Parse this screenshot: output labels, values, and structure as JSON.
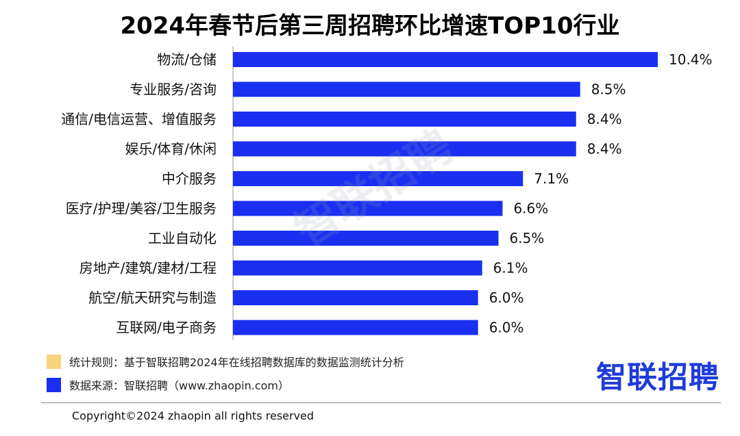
{
  "colors": {
    "bar": "#1a2ff0",
    "rule_swatch": "#f7d57e",
    "source_swatch": "#1a2ff0",
    "logo": "#1f3bd8"
  },
  "watermark": "智联招聘",
  "notes": {
    "rule": "统计规则：基于智联招聘2024年在线招聘数据库的数据监测统计分析",
    "source": "数据来源：智联招聘（www.zhaopin.com）"
  },
  "logo": "智联招聘",
  "copyright": "Copyright©2024 zhaopin all rights reserved",
  "chart_data": {
    "type": "bar",
    "orientation": "horizontal",
    "title": "2024年春节后第三周招聘环比增速TOP10行业",
    "categories": [
      "物流/仓储",
      "专业服务/咨询",
      "通信/电信运营、增值服务",
      "娱乐/体育/休闲",
      "中介服务",
      "医疗/护理/美容/卫生服务",
      "工业自动化",
      "房地产/建筑/建材/工程",
      "航空/航天研究与制造",
      "互联网/电子商务"
    ],
    "values": [
      10.4,
      8.5,
      8.4,
      8.4,
      7.1,
      6.6,
      6.5,
      6.1,
      6.0,
      6.0
    ],
    "value_labels": [
      "10.4%",
      "8.5%",
      "8.4%",
      "8.4%",
      "7.1%",
      "6.6%",
      "6.5%",
      "6.1%",
      "6.0%",
      "6.0%"
    ],
    "xlim": [
      0,
      10.4
    ],
    "grid": false,
    "legend": "none"
  }
}
